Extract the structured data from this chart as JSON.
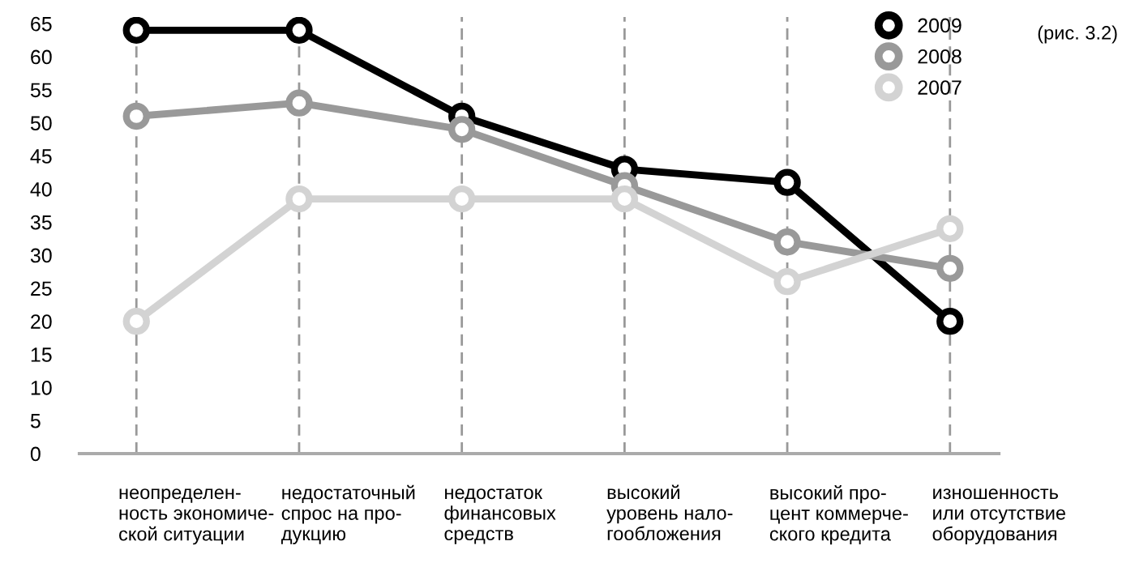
{
  "chart_data": {
    "type": "line",
    "categories": [
      "неопределен-\nность экономиче-\nской ситуации",
      "недостаточный\nспрос на про-\nдукцию",
      "недостаток\nфинансовых\nсредств",
      "высокий\nуровень нало-\nгообложения",
      "высокий про-\nцент коммерче-\nского кредита",
      "изношенность\nили отсутствие\nоборудования"
    ],
    "series": [
      {
        "name": "2009",
        "color": "#000000",
        "values": [
          64,
          64,
          51,
          43,
          41,
          20
        ]
      },
      {
        "name": "2008",
        "color": "#999999",
        "values": [
          51,
          53,
          49,
          40.5,
          32,
          28
        ]
      },
      {
        "name": "2007",
        "color": "#d3d3d3",
        "values": [
          20,
          38.5,
          38.5,
          38.5,
          26,
          34
        ]
      }
    ],
    "ylim": [
      0,
      66
    ],
    "yticks": [
      0,
      5,
      10,
      15,
      20,
      25,
      30,
      35,
      40,
      45,
      50,
      55,
      60,
      65
    ],
    "grid": "x",
    "legend": "top right",
    "marker": "circle",
    "line_style": "solid",
    "annotations": [
      "(рис. 3.2)"
    ]
  }
}
